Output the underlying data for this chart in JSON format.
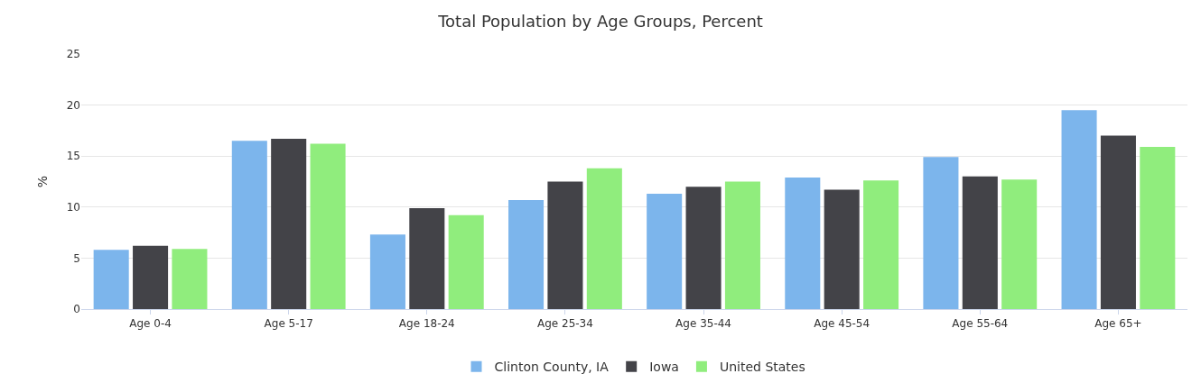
{
  "chart_data": {
    "type": "bar",
    "title": "Total Population by Age Groups, Percent",
    "ylabel": "%",
    "categories": [
      "Age 0-4",
      "Age 5-17",
      "Age 18-24",
      "Age 25-34",
      "Age 35-44",
      "Age 45-54",
      "Age 55-64",
      "Age 65+"
    ],
    "series": [
      {
        "name": "Clinton County, IA",
        "color": "#7cb5ec",
        "values": [
          5.8,
          16.5,
          7.3,
          10.7,
          11.3,
          12.9,
          14.9,
          19.5
        ]
      },
      {
        "name": "Iowa",
        "color": "#434348",
        "values": [
          6.2,
          16.7,
          9.9,
          12.5,
          12.0,
          11.7,
          13.0,
          17.0
        ]
      },
      {
        "name": "United States",
        "color": "#90ed7d",
        "values": [
          5.9,
          16.2,
          9.2,
          13.8,
          12.5,
          12.6,
          12.7,
          15.9
        ]
      }
    ],
    "ylim": [
      0,
      25
    ],
    "yticks": [
      0,
      5,
      10,
      15,
      20,
      25
    ],
    "grid": "y",
    "legend": "bottom"
  }
}
